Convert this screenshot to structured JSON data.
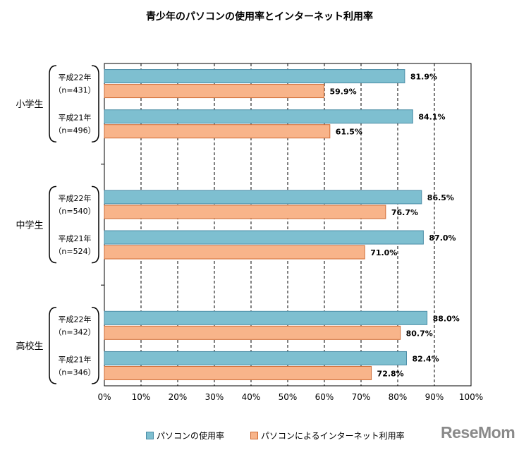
{
  "chart_data": {
    "type": "bar",
    "orientation": "horizontal",
    "title": "青少年のパソコンの使用率とインターネット利用率",
    "groups": [
      {
        "label": "小学生",
        "rows": [
          {
            "year": "平成22年",
            "n": "（n=431）",
            "values": [
              81.9,
              59.9
            ]
          },
          {
            "year": "平成21年",
            "n": "（n=496）",
            "values": [
              84.1,
              61.5
            ]
          }
        ]
      },
      {
        "label": "中学生",
        "rows": [
          {
            "year": "平成22年",
            "n": "（n=540）",
            "values": [
              86.5,
              76.7
            ]
          },
          {
            "year": "平成21年",
            "n": "（n=524）",
            "values": [
              87.0,
              71.0
            ]
          }
        ]
      },
      {
        "label": "高校生",
        "rows": [
          {
            "year": "平成22年",
            "n": "（n=342）",
            "values": [
              88.0,
              80.7
            ]
          },
          {
            "year": "平成21年",
            "n": "（n=346）",
            "values": [
              82.4,
              72.8
            ]
          }
        ]
      }
    ],
    "series": [
      {
        "name": "パソコンの使用率",
        "color": "#7EBFD0",
        "border": "#4A8CA6"
      },
      {
        "name": "パソコンによるインターネット利用率",
        "color": "#F8B48A",
        "border": "#D06C35"
      }
    ],
    "xlim": [
      0,
      100
    ],
    "xticks": [
      "0%",
      "10%",
      "20%",
      "30%",
      "40%",
      "50%",
      "60%",
      "70%",
      "80%",
      "90%",
      "100%"
    ],
    "grid": true,
    "legend_position": "bottom"
  },
  "logo": "ReseMom"
}
